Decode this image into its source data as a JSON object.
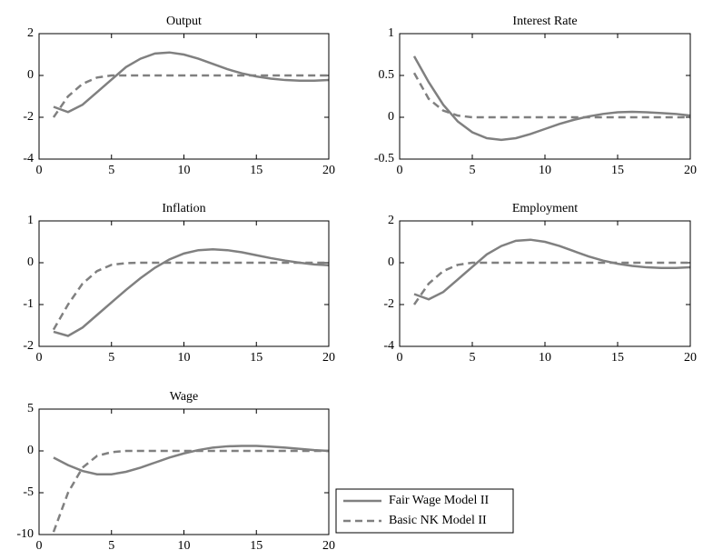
{
  "chart_data": [
    {
      "type": "line",
      "title": "Output",
      "x": [
        1,
        2,
        3,
        4,
        5,
        6,
        7,
        8,
        9,
        10,
        11,
        12,
        13,
        14,
        15,
        16,
        17,
        18,
        19,
        20
      ],
      "xlim": [
        0,
        20
      ],
      "xticks": [
        0,
        5,
        10,
        15,
        20
      ],
      "ylim": [
        -4,
        2
      ],
      "yticks": [
        -4,
        -2,
        0,
        2
      ],
      "series": [
        {
          "color": "#808080",
          "style": "solid",
          "values": [
            -1.5,
            -1.75,
            -1.4,
            -0.8,
            -0.2,
            0.4,
            0.8,
            1.05,
            1.1,
            1.0,
            0.8,
            0.55,
            0.3,
            0.1,
            -0.05,
            -0.15,
            -0.22,
            -0.25,
            -0.25,
            -0.22
          ]
        },
        {
          "color": "#808080",
          "style": "dashed",
          "values": [
            -2.0,
            -1.0,
            -0.4,
            -0.1,
            0,
            0,
            0,
            0,
            0,
            0,
            0,
            0,
            0,
            0,
            0,
            0,
            0,
            0,
            0,
            0
          ]
        }
      ]
    },
    {
      "type": "line",
      "title": "Interest Rate",
      "x": [
        1,
        2,
        3,
        4,
        5,
        6,
        7,
        8,
        9,
        10,
        11,
        12,
        13,
        14,
        15,
        16,
        17,
        18,
        19,
        20
      ],
      "xlim": [
        0,
        20
      ],
      "xticks": [
        0,
        5,
        10,
        15,
        20
      ],
      "ylim": [
        -0.5,
        1
      ],
      "yticks": [
        -0.5,
        0,
        0.5,
        1
      ],
      "series": [
        {
          "color": "#808080",
          "style": "solid",
          "values": [
            0.73,
            0.42,
            0.15,
            -0.05,
            -0.18,
            -0.25,
            -0.27,
            -0.25,
            -0.2,
            -0.14,
            -0.08,
            -0.03,
            0.01,
            0.04,
            0.06,
            0.065,
            0.06,
            0.05,
            0.04,
            0.02
          ]
        },
        {
          "color": "#808080",
          "style": "dashed",
          "values": [
            0.53,
            0.22,
            0.08,
            0.02,
            0,
            0,
            0,
            0,
            0,
            0,
            0,
            0,
            0,
            0,
            0,
            0,
            0,
            0,
            0,
            0
          ]
        }
      ]
    },
    {
      "type": "line",
      "title": "Inflation",
      "x": [
        1,
        2,
        3,
        4,
        5,
        6,
        7,
        8,
        9,
        10,
        11,
        12,
        13,
        14,
        15,
        16,
        17,
        18,
        19,
        20
      ],
      "xlim": [
        0,
        20
      ],
      "xticks": [
        0,
        5,
        10,
        15,
        20
      ],
      "ylim": [
        -2,
        1
      ],
      "yticks": [
        -2,
        -1,
        0,
        1
      ],
      "series": [
        {
          "color": "#808080",
          "style": "solid",
          "values": [
            -1.65,
            -1.75,
            -1.55,
            -1.25,
            -0.95,
            -0.65,
            -0.37,
            -0.12,
            0.08,
            0.22,
            0.3,
            0.32,
            0.3,
            0.25,
            0.18,
            0.11,
            0.05,
            0,
            -0.04,
            -0.06
          ]
        },
        {
          "color": "#808080",
          "style": "dashed",
          "values": [
            -1.6,
            -1.0,
            -0.5,
            -0.2,
            -0.05,
            -0.01,
            0,
            0,
            0,
            0,
            0,
            0,
            0,
            0,
            0,
            0,
            0,
            0,
            0,
            0
          ]
        }
      ]
    },
    {
      "type": "line",
      "title": "Employment",
      "x": [
        1,
        2,
        3,
        4,
        5,
        6,
        7,
        8,
        9,
        10,
        11,
        12,
        13,
        14,
        15,
        16,
        17,
        18,
        19,
        20
      ],
      "xlim": [
        0,
        20
      ],
      "xticks": [
        0,
        5,
        10,
        15,
        20
      ],
      "ylim": [
        -4,
        2
      ],
      "yticks": [
        -4,
        -2,
        0,
        2
      ],
      "series": [
        {
          "color": "#808080",
          "style": "solid",
          "values": [
            -1.5,
            -1.75,
            -1.4,
            -0.8,
            -0.2,
            0.4,
            0.8,
            1.05,
            1.1,
            1.0,
            0.8,
            0.55,
            0.3,
            0.1,
            -0.05,
            -0.15,
            -0.22,
            -0.25,
            -0.25,
            -0.22
          ]
        },
        {
          "color": "#808080",
          "style": "dashed",
          "values": [
            -2.0,
            -1.0,
            -0.4,
            -0.1,
            0,
            0,
            0,
            0,
            0,
            0,
            0,
            0,
            0,
            0,
            0,
            0,
            0,
            0,
            0,
            0
          ]
        }
      ]
    },
    {
      "type": "line",
      "title": "Wage",
      "x": [
        1,
        2,
        3,
        4,
        5,
        6,
        7,
        8,
        9,
        10,
        11,
        12,
        13,
        14,
        15,
        16,
        17,
        18,
        19,
        20
      ],
      "xlim": [
        0,
        20
      ],
      "xticks": [
        0,
        5,
        10,
        15,
        20
      ],
      "ylim": [
        -10,
        5
      ],
      "yticks": [
        -10,
        -5,
        0,
        5
      ],
      "legend": "outside right",
      "series": [
        {
          "name": "Fair Wage Model II",
          "color": "#808080",
          "style": "solid",
          "values": [
            -0.8,
            -1.7,
            -2.4,
            -2.8,
            -2.8,
            -2.5,
            -2.0,
            -1.4,
            -0.8,
            -0.3,
            0.1,
            0.4,
            0.55,
            0.6,
            0.6,
            0.5,
            0.4,
            0.25,
            0.1,
            0
          ]
        },
        {
          "name": "Basic NK Model II",
          "color": "#808080",
          "style": "dashed",
          "values": [
            -9.7,
            -5.0,
            -2.0,
            -0.6,
            -0.15,
            0,
            0,
            0,
            0,
            0,
            0,
            0,
            0,
            0,
            0,
            0,
            0,
            0,
            0,
            0
          ]
        }
      ]
    }
  ]
}
